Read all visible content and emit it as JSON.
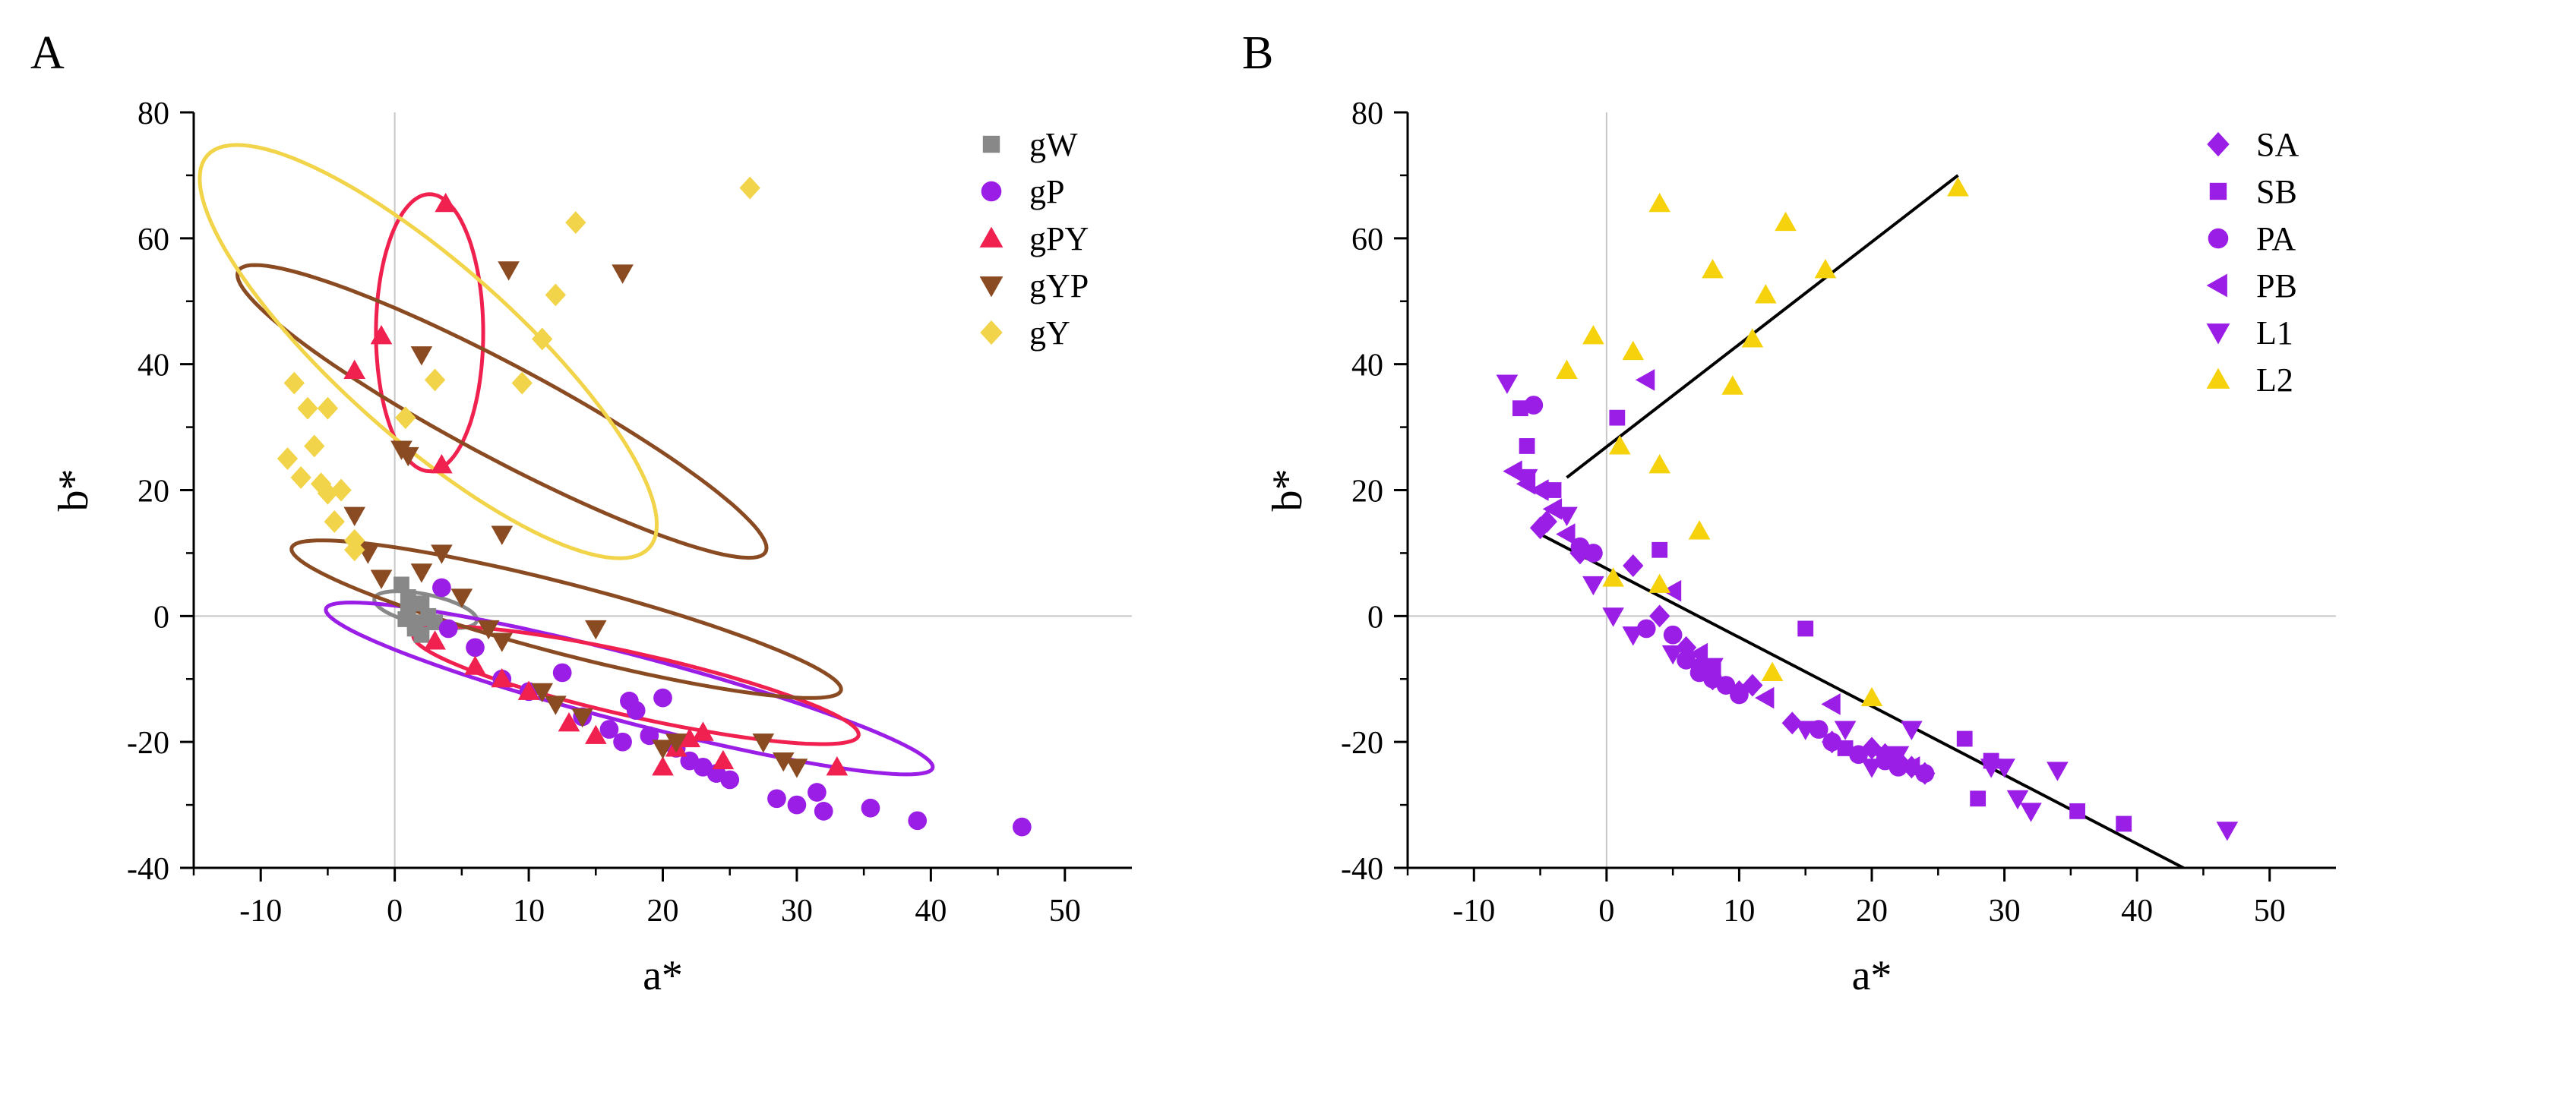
{
  "chart_data": [
    {
      "panel_label": "A",
      "type": "scatter",
      "xlabel": "a*",
      "ylabel": "b*",
      "xlim": [
        -15,
        55
      ],
      "ylim": [
        -40,
        80
      ],
      "x_ticks": [
        -10,
        0,
        10,
        20,
        30,
        40,
        50
      ],
      "y_ticks": [
        -40,
        -20,
        0,
        20,
        40,
        60,
        80
      ],
      "x_tick_labels": [
        "-10",
        "0",
        "10",
        "20",
        "30",
        "40",
        "50"
      ],
      "y_tick_labels": [
        "-40",
        "-20",
        "0",
        "20",
        "40",
        "60",
        "80"
      ],
      "zero_lines": true,
      "legend_position": "top-right",
      "series": [
        {
          "name": "gW",
          "marker": "square",
          "color": "#888888",
          "points": [
            [
              0.5,
              5
            ],
            [
              1,
              1
            ],
            [
              1.5,
              -2
            ],
            [
              2,
              -3
            ],
            [
              2.5,
              0
            ],
            [
              3,
              -1
            ],
            [
              1,
              3
            ],
            [
              1.5,
              -1
            ],
            [
              2,
              2
            ],
            [
              0.8,
              -0.5
            ]
          ]
        },
        {
          "name": "gP",
          "marker": "circle",
          "color": "#9a1ee6",
          "points": [
            [
              3.5,
              4.5
            ],
            [
              4,
              -2
            ],
            [
              6,
              -5
            ],
            [
              8,
              -10
            ],
            [
              10,
              -12
            ],
            [
              12.5,
              -9
            ],
            [
              14,
              -16
            ],
            [
              16,
              -18
            ],
            [
              17,
              -20
            ],
            [
              17.5,
              -13.5
            ],
            [
              18,
              -15
            ],
            [
              19,
              -19
            ],
            [
              20,
              -13
            ],
            [
              21,
              -21
            ],
            [
              22,
              -23
            ],
            [
              23,
              -24
            ],
            [
              24,
              -25
            ],
            [
              25,
              -26
            ],
            [
              28.5,
              -29
            ],
            [
              30,
              -30
            ],
            [
              31.5,
              -28
            ],
            [
              32,
              -31
            ],
            [
              35.5,
              -30.5
            ],
            [
              39,
              -32.5
            ],
            [
              46.8,
              -33.5
            ]
          ]
        },
        {
          "name": "gPY",
          "marker": "triangle-up",
          "color": "#f0204f",
          "points": [
            [
              -3,
              39
            ],
            [
              -1,
              44.5
            ],
            [
              3.5,
              24
            ],
            [
              3.8,
              65.5
            ],
            [
              3,
              -4
            ],
            [
              6,
              -8
            ],
            [
              8,
              -10
            ],
            [
              10,
              -12
            ],
            [
              13,
              -17
            ],
            [
              15,
              -19
            ],
            [
              20,
              -24
            ],
            [
              21,
              -21
            ],
            [
              22,
              -19.5
            ],
            [
              23,
              -18.5
            ],
            [
              24.5,
              -23
            ],
            [
              33,
              -24
            ]
          ]
        },
        {
          "name": "gYP",
          "marker": "triangle-down",
          "color": "#8b4b22",
          "points": [
            [
              -3,
              16
            ],
            [
              -2,
              10
            ],
            [
              -1,
              6
            ],
            [
              0.5,
              26.5
            ],
            [
              1,
              25.5
            ],
            [
              2,
              7
            ],
            [
              2,
              41.5
            ],
            [
              3.5,
              10
            ],
            [
              5,
              3
            ],
            [
              7,
              -2
            ],
            [
              8,
              -4
            ],
            [
              8,
              13
            ],
            [
              8.5,
              55
            ],
            [
              11,
              -12
            ],
            [
              12,
              -14
            ],
            [
              14,
              -16
            ],
            [
              15,
              -2
            ],
            [
              17,
              54.5
            ],
            [
              20,
              -21
            ],
            [
              21,
              -20
            ],
            [
              27.5,
              -20
            ],
            [
              29,
              -23
            ],
            [
              30,
              -24
            ]
          ]
        },
        {
          "name": "gY",
          "marker": "diamond",
          "color": "#f2d44a",
          "points": [
            [
              -8,
              25
            ],
            [
              -7.5,
              37
            ],
            [
              -7,
              22
            ],
            [
              -6.5,
              33
            ],
            [
              -6,
              27
            ],
            [
              -5.5,
              21
            ],
            [
              -5,
              33
            ],
            [
              -5,
              19.5
            ],
            [
              -4.5,
              15
            ],
            [
              -4,
              20
            ],
            [
              -3,
              12
            ],
            [
              -3,
              10.5
            ],
            [
              0.8,
              31.5
            ],
            [
              3,
              37.5
            ],
            [
              9.5,
              37
            ],
            [
              11,
              44
            ],
            [
              12,
              51
            ],
            [
              13.5,
              62.5
            ],
            [
              26.5,
              68
            ]
          ]
        }
      ],
      "ellipses": [
        {
          "group": "gW",
          "color": "#888888"
        },
        {
          "group": "gP",
          "color": "#9a1ee6"
        },
        {
          "group": "gPY",
          "color": "#f0204f"
        },
        {
          "group": "gPY",
          "color": "#f0204f"
        },
        {
          "group": "gYP",
          "color": "#8b4b22"
        },
        {
          "group": "gYP",
          "color": "#8b4b22"
        },
        {
          "group": "gY",
          "color": "#f2d44a"
        }
      ]
    },
    {
      "panel_label": "B",
      "type": "scatter",
      "xlabel": "a*",
      "ylabel": "b*",
      "xlim": [
        -15,
        55
      ],
      "ylim": [
        -40,
        80
      ],
      "x_ticks": [
        -10,
        0,
        10,
        20,
        30,
        40,
        50
      ],
      "y_ticks": [
        -40,
        -20,
        0,
        20,
        40,
        60,
        80
      ],
      "x_tick_labels": [
        "-10",
        "0",
        "10",
        "20",
        "30",
        "40",
        "50"
      ],
      "y_tick_labels": [
        "-40",
        "-20",
        "0",
        "20",
        "40",
        "60",
        "80"
      ],
      "zero_lines": true,
      "legend_position": "top-right",
      "series": [
        {
          "name": "SA",
          "marker": "diamond",
          "color": "#9a1ee6",
          "points": [
            [
              -5,
              14
            ],
            [
              -4.5,
              15
            ],
            [
              -2,
              10
            ],
            [
              2,
              8
            ],
            [
              4,
              0
            ],
            [
              6,
              -5
            ],
            [
              7,
              -8
            ],
            [
              8,
              -10
            ],
            [
              10,
              -12
            ],
            [
              11,
              -11
            ],
            [
              14,
              -17
            ],
            [
              17,
              -20
            ],
            [
              20,
              -21
            ],
            [
              21,
              -22
            ],
            [
              22,
              -23
            ],
            [
              23,
              -24
            ],
            [
              24,
              -25
            ]
          ]
        },
        {
          "name": "SB",
          "marker": "square",
          "color": "#9a1ee6",
          "points": [
            [
              -6.5,
              33
            ],
            [
              -6,
              27
            ],
            [
              -4,
              20
            ],
            [
              0.8,
              31.5
            ],
            [
              4,
              10.5
            ],
            [
              15,
              -2
            ],
            [
              18,
              -21
            ],
            [
              27,
              -19.5
            ],
            [
              28,
              -29
            ],
            [
              29,
              -23
            ],
            [
              35.5,
              -31
            ],
            [
              39,
              -33
            ]
          ]
        },
        {
          "name": "PA",
          "marker": "circle",
          "color": "#9a1ee6",
          "points": [
            [
              -5.5,
              33.5
            ],
            [
              -2,
              11
            ],
            [
              -1,
              10
            ],
            [
              3,
              -2
            ],
            [
              5,
              -3
            ],
            [
              6,
              -7
            ],
            [
              7,
              -9
            ],
            [
              8,
              -10
            ],
            [
              9,
              -11
            ],
            [
              10,
              -12.5
            ],
            [
              16,
              -18
            ],
            [
              17,
              -20
            ],
            [
              19,
              -22
            ],
            [
              21,
              -23
            ],
            [
              22,
              -24
            ],
            [
              24,
              -25
            ]
          ]
        },
        {
          "name": "PB",
          "marker": "triangle-left",
          "color": "#9a1ee6",
          "points": [
            [
              -7,
              23
            ],
            [
              -6,
              21
            ],
            [
              -5,
              20
            ],
            [
              -4,
              17
            ],
            [
              -3,
              13
            ],
            [
              3,
              37.5
            ],
            [
              5,
              4
            ],
            [
              7,
              -6
            ],
            [
              8,
              -9
            ],
            [
              12,
              -13
            ],
            [
              17,
              -14
            ],
            [
              23,
              -24
            ]
          ]
        },
        {
          "name": "L1",
          "marker": "triangle-down",
          "color": "#9a1ee6",
          "points": [
            [
              -7.5,
              37
            ],
            [
              -6,
              22
            ],
            [
              -3,
              16
            ],
            [
              -1,
              5
            ],
            [
              0.5,
              0
            ],
            [
              2,
              -3
            ],
            [
              5,
              -6
            ],
            [
              8,
              -8
            ],
            [
              15,
              -18
            ],
            [
              18,
              -18
            ],
            [
              20,
              -24
            ],
            [
              22,
              -22
            ],
            [
              23,
              -18
            ],
            [
              29,
              -24
            ],
            [
              30,
              -24
            ],
            [
              31,
              -29
            ],
            [
              32,
              -31
            ],
            [
              34,
              -24.5
            ],
            [
              46.8,
              -34
            ]
          ]
        },
        {
          "name": "L2",
          "marker": "triangle-up",
          "color": "#f5d20b",
          "points": [
            [
              -3,
              39
            ],
            [
              -1,
              44.5
            ],
            [
              0.5,
              6
            ],
            [
              1,
              27
            ],
            [
              2,
              42
            ],
            [
              4,
              65.5
            ],
            [
              4,
              24
            ],
            [
              4,
              5
            ],
            [
              7,
              13.5
            ],
            [
              8,
              55
            ],
            [
              9.5,
              36.5
            ],
            [
              11,
              44
            ],
            [
              12,
              51
            ],
            [
              12.5,
              -9
            ],
            [
              13.5,
              62.5
            ],
            [
              16.5,
              55
            ],
            [
              20,
              -13
            ],
            [
              26.5,
              68
            ]
          ]
        }
      ],
      "fit_lines": [
        {
          "name": "upper trend",
          "from": [
            -3,
            22
          ],
          "to": [
            26.5,
            70
          ]
        },
        {
          "name": "lower trend",
          "from": [
            -5,
            13
          ],
          "to": [
            43.5,
            -40
          ]
        }
      ]
    }
  ]
}
